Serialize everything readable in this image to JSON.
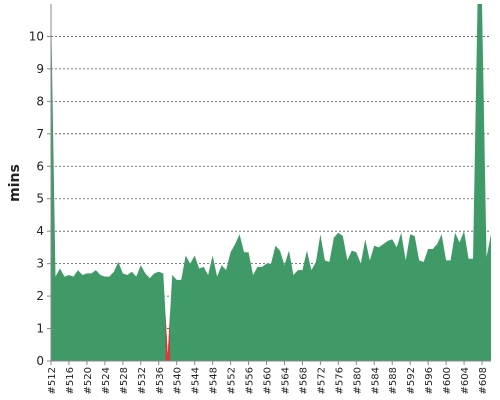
{
  "chart_data": {
    "type": "area",
    "title": "",
    "xlabel": "",
    "ylabel": "mins",
    "ylim": [
      0,
      11
    ],
    "y_ticks": [
      0,
      1,
      2,
      3,
      4,
      5,
      6,
      7,
      8,
      9,
      10
    ],
    "grid": true,
    "colors": {
      "normal": "#3f9a67",
      "failed": "#d83a3a",
      "grid": "#555555",
      "axis": "#888888"
    },
    "x_tick_labels": [
      "#512",
      "#516",
      "#520",
      "#524",
      "#528",
      "#532",
      "#536",
      "#540",
      "#544",
      "#548",
      "#552",
      "#556",
      "#560",
      "#564",
      "#568",
      "#572",
      "#576",
      "#580",
      "#584",
      "#588",
      "#592",
      "#596",
      "#600",
      "#604",
      "#608"
    ],
    "x": [
      512,
      513,
      514,
      515,
      516,
      517,
      518,
      519,
      520,
      521,
      522,
      523,
      524,
      525,
      526,
      527,
      528,
      529,
      530,
      531,
      532,
      533,
      534,
      535,
      536,
      537,
      538,
      539,
      540,
      541,
      542,
      543,
      544,
      545,
      546,
      547,
      548,
      549,
      550,
      551,
      552,
      553,
      554,
      555,
      556,
      557,
      558,
      559,
      560,
      561,
      562,
      563,
      564,
      565,
      566,
      567,
      568,
      569,
      570,
      571,
      572,
      573,
      574,
      575,
      576,
      577,
      578,
      579,
      580,
      581,
      582,
      583,
      584,
      585,
      586,
      587,
      588,
      589,
      590,
      591,
      592,
      593,
      594,
      595,
      596,
      597,
      598,
      599,
      600,
      601,
      602,
      603,
      604,
      605,
      606,
      607,
      608,
      609,
      610
    ],
    "values": [
      11,
      2.6,
      2.85,
      2.6,
      2.65,
      2.6,
      2.8,
      2.65,
      2.7,
      2.7,
      2.8,
      2.65,
      2.6,
      2.6,
      2.75,
      3.05,
      2.7,
      2.65,
      2.75,
      2.6,
      2.95,
      2.7,
      2.55,
      2.7,
      2.75,
      2.7,
      0.2,
      2.65,
      2.5,
      2.5,
      3.25,
      3.0,
      3.25,
      2.85,
      2.9,
      2.65,
      3.25,
      2.6,
      2.95,
      2.8,
      3.35,
      3.6,
      3.9,
      3.35,
      3.35,
      2.65,
      2.9,
      2.9,
      3.0,
      3.0,
      3.55,
      3.4,
      2.95,
      3.4,
      2.65,
      2.8,
      2.8,
      3.4,
      2.8,
      3.05,
      3.9,
      3.1,
      3.05,
      3.8,
      3.95,
      3.85,
      3.1,
      3.4,
      3.35,
      3.0,
      3.75,
      3.1,
      3.55,
      3.5,
      3.6,
      3.7,
      3.75,
      3.5,
      3.95,
      3.1,
      3.9,
      3.85,
      3.1,
      3.05,
      3.45,
      3.45,
      3.6,
      3.9,
      3.1,
      3.1,
      3.95,
      3.65,
      4.0,
      3.15,
      3.15,
      11,
      11,
      3.2,
      3.9
    ],
    "failed_builds": [
      538
    ]
  }
}
